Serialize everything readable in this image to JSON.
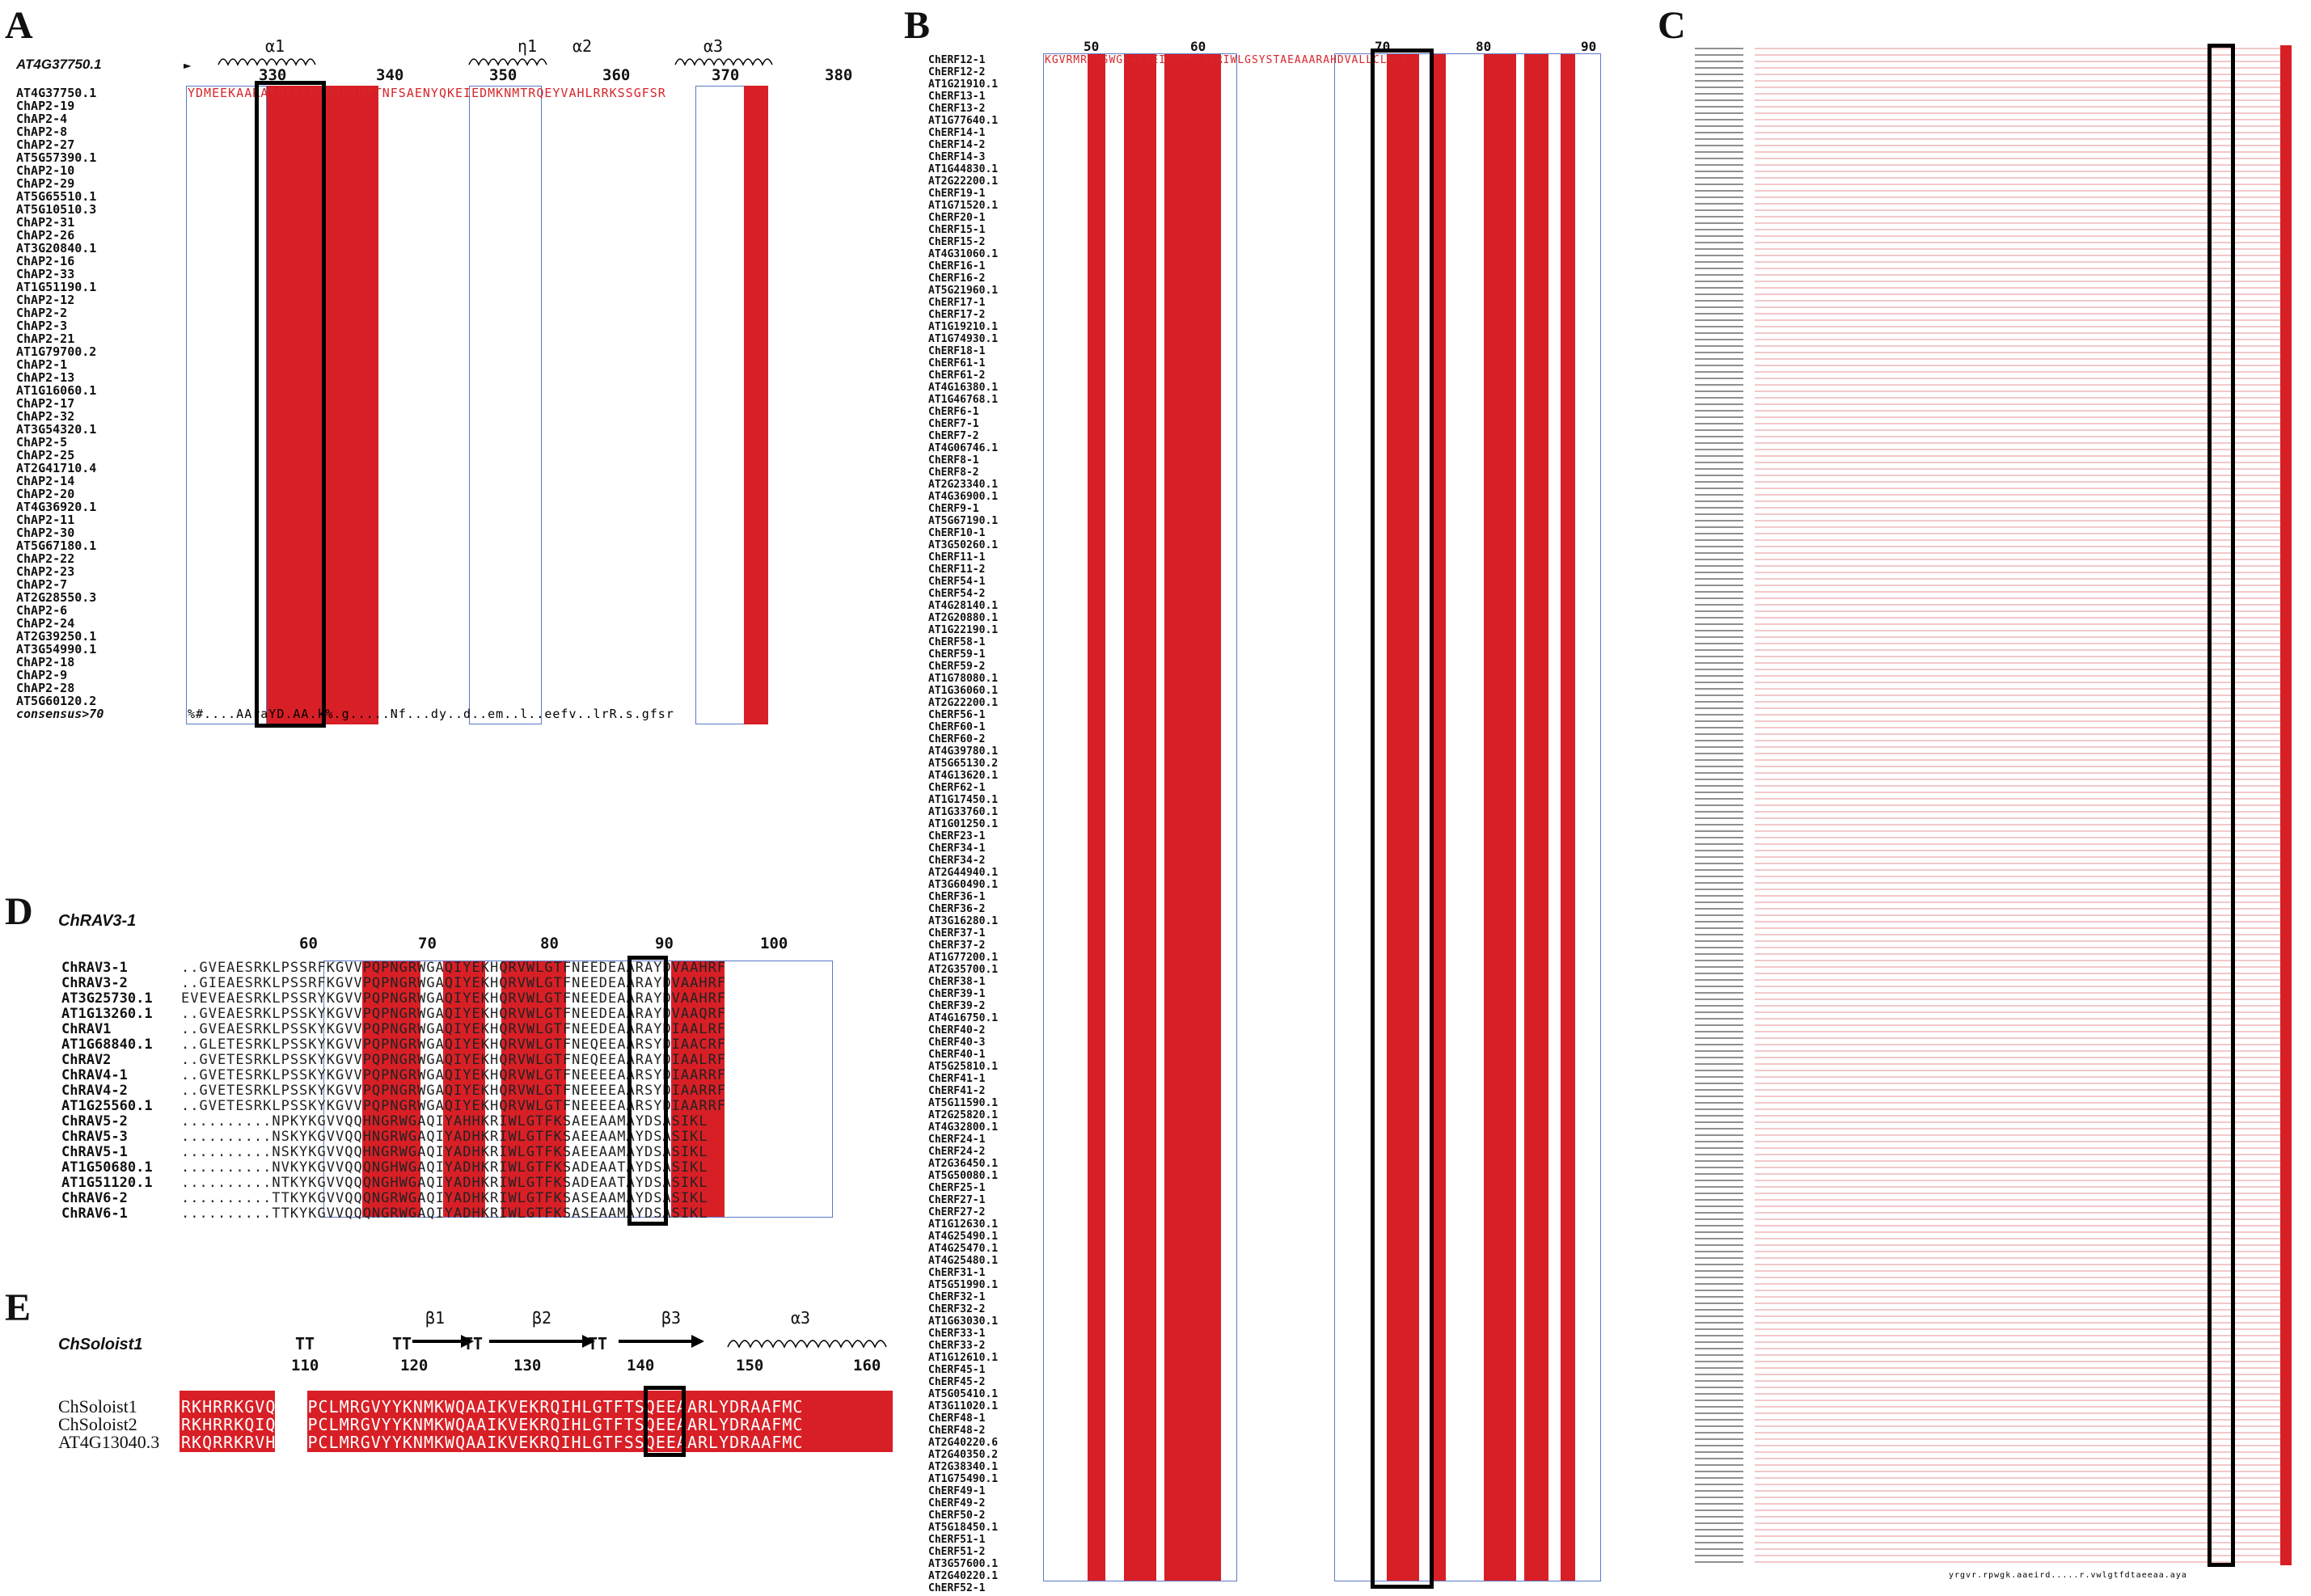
{
  "panels": {
    "A": {
      "letter": "A",
      "ref": "AT4G37750.1",
      "ruler_ticks": [
        "330",
        "340",
        "350",
        "360",
        "370",
        "380"
      ],
      "ss_labels": [
        "α1",
        "η1",
        "α2",
        "α3"
      ],
      "rows": [
        "AT4G37750.1",
        "ChAP2-19",
        "ChAP2-4",
        "ChAP2-8",
        "ChAP2-27",
        "AT5G57390.1",
        "ChAP2-10",
        "ChAP2-29",
        "AT5G65510.1",
        "AT5G10510.3",
        "ChAP2-31",
        "ChAP2-26",
        "AT3G20840.1",
        "ChAP2-16",
        "ChAP2-33",
        "AT1G51190.1",
        "ChAP2-12",
        "ChAP2-2",
        "ChAP2-3",
        "ChAP2-21",
        "AT1G79700.2",
        "ChAP2-1",
        "ChAP2-13",
        "AT1G16060.1",
        "ChAP2-17",
        "ChAP2-32",
        "AT3G54320.1",
        "ChAP2-5",
        "ChAP2-25",
        "AT2G41710.4",
        "ChAP2-14",
        "ChAP2-20",
        "AT4G36920.1",
        "ChAP2-11",
        "ChAP2-30",
        "AT5G67180.1",
        "ChAP2-22",
        "ChAP2-23",
        "ChAP2-7",
        "AT2G28550.3",
        "ChAP2-6",
        "ChAP2-24",
        "AT2G39250.1",
        "AT3G54990.1",
        "ChAP2-18",
        "ChAP2-9",
        "ChAP2-28",
        "AT5G60120.2",
        "consensus>70"
      ],
      "first_seq": "YDMEEKAARAYDAALKYWGPSHTTNFSAENYQKEIEDMKNMTRQEYVAHLRRKSSGFSR",
      "consensus": "%#....AAraYD.AA.k%.g.....Nf...dy..d..em..l..eefv..lrR.s.gfsr"
    },
    "B": {
      "letter": "B",
      "ruler_ticks": [
        "50",
        "60",
        "70",
        "80",
        "90"
      ],
      "rows": [
        "ChERF12-1",
        "ChERF12-2",
        "AT1G21910.1",
        "ChERF13-1",
        "ChERF13-2",
        "AT1G77640.1",
        "ChERF14-1",
        "ChERF14-2",
        "ChERF14-3",
        "AT1G44830.1",
        "AT2G22200.1",
        "ChERF19-1",
        "AT1G71520.1",
        "ChERF20-1",
        "ChERF15-1",
        "ChERF15-2",
        "AT4G31060.1",
        "ChERF16-1",
        "ChERF16-2",
        "AT5G21960.1",
        "ChERF17-1",
        "ChERF17-2",
        "AT1G19210.1",
        "AT1G74930.1",
        "ChERF18-1",
        "ChERF61-1",
        "ChERF61-2",
        "AT4G16380.1",
        "AT1G46768.1",
        "ChERF6-1",
        "ChERF7-1",
        "ChERF7-2",
        "AT4G06746.1",
        "ChERF8-1",
        "ChERF8-2",
        "AT2G23340.1",
        "AT4G36900.1",
        "ChERF9-1",
        "AT5G67190.1",
        "ChERF10-1",
        "AT3G50260.1",
        "ChERF11-1",
        "ChERF11-2",
        "ChERF54-1",
        "ChERF54-2",
        "AT4G28140.1",
        "AT2G20880.1",
        "AT1G22190.1",
        "ChERF58-1",
        "ChERF59-1",
        "ChERF59-2",
        "AT1G78080.1",
        "AT1G36060.1",
        "AT2G22200.1",
        "ChERF56-1",
        "ChERF60-1",
        "ChERF60-2",
        "AT4G39780.1",
        "AT5G65130.2",
        "AT4G13620.1",
        "ChERF62-1",
        "AT1G17450.1",
        "AT1G33760.1",
        "AT1G01250.1",
        "ChERF23-1",
        "ChERF34-1",
        "ChERF34-2",
        "AT2G44940.1",
        "AT3G60490.1",
        "ChERF36-1",
        "ChERF36-2",
        "AT3G16280.1",
        "ChERF37-1",
        "ChERF37-2",
        "AT1G77200.1",
        "AT2G35700.1",
        "ChERF38-1",
        "ChERF39-1",
        "ChERF39-2",
        "AT4G16750.1",
        "ChERF40-2",
        "ChERF40-3",
        "ChERF40-1",
        "AT5G25810.1",
        "ChERF41-1",
        "ChERF41-2",
        "AT5G11590.1",
        "AT2G25820.1",
        "AT4G32800.1",
        "ChERF24-1",
        "ChERF24-2",
        "AT2G36450.1",
        "AT5G50080.1",
        "ChERF25-1",
        "ChERF27-1",
        "ChERF27-2",
        "AT1G12630.1",
        "AT4G25490.1",
        "AT4G25470.1",
        "AT4G25480.1",
        "ChERF31-1",
        "AT5G51990.1",
        "ChERF32-1",
        "ChERF32-2",
        "AT1G63030.1",
        "ChERF33-1",
        "ChERF33-2",
        "AT1G12610.1",
        "ChERF45-1",
        "ChERF45-2",
        "AT5G05410.1",
        "AT3G11020.1",
        "ChERF48-1",
        "ChERF48-2",
        "AT2G40220.6",
        "AT2G40350.2",
        "AT2G38340.1",
        "AT1G75490.1",
        "ChERF49-1",
        "ChERF49-2",
        "ChERF50-2",
        "AT5G18450.1",
        "ChERF51-1",
        "ChERF51-2",
        "AT3G57600.1",
        "AT2G40220.1",
        "ChERF52-1"
      ],
      "first_seq": "KGVRMR..SWGSWVSEIRAPNKQTRIWLGSYSTAEAAARAHDVALLCLKGP."
    },
    "C": {
      "letter": "C",
      "consensus": "yrgvr.rpwgk.aaeird.....r.vwlgtfdtaeeaa.aya"
    },
    "D": {
      "letter": "D",
      "ref": "ChRAV3-1",
      "ruler_ticks": [
        "60",
        "70",
        "80",
        "90",
        "100"
      ],
      "rows": [
        {
          "name": "ChRAV3-1",
          "seq": "..GVEAESRKLPSSRFKGVVPQPNGRWGAQIYEKHQRVWLGTFNEEDEAARAYDVAAHRF"
        },
        {
          "name": "ChRAV3-2",
          "seq": "..GIEAESRKLPSSRFKGVVPQPNGRWGAQIYEKHQRVWLGTFNEEDEAARAYDVAAHRF"
        },
        {
          "name": "AT3G25730.1",
          "seq": "EVEVEAESRKLPSSRYKGVVPQPNGRWGAQIYEKHQRVWLGTFNEEDEAARAYDVAAHRF"
        },
        {
          "name": "AT1G13260.1",
          "seq": "..GVEAESRKLPSSKYKGVVPQPNGRWGAQIYEKHQRVWLGTFNEEDEAARAYDVAAQRF"
        },
        {
          "name": "ChRAV1",
          "seq": "..GVEAESRKLPSSKYKGVVPQPNGRWGAQIYEKHQRVWLGTFNEEDEAARAYDIAALRF"
        },
        {
          "name": "AT1G68840.1",
          "seq": "..GLETESRKLPSSKYKGVVPQPNGRWGAQIYEKHQRVWLGTFNEQEEAARSYDIAACRF"
        },
        {
          "name": "ChRAV2",
          "seq": "..GVETESRKLPSSKYKGVVPQPNGRWGAQIYEKHQRVWLGTFNEQEEAARAYDIAALRF"
        },
        {
          "name": "ChRAV4-1",
          "seq": "..GVETESRKLPSSKYKGVVPQPNGRWGAQIYEKHQRVWLGTFNEEEEAARSYDIAARRF"
        },
        {
          "name": "ChRAV4-2",
          "seq": "..GVETESRKLPSSKYKGVVPQPNGRWGAQIYEKHQRVWLGTFNEEEEAARSYDIAARRF"
        },
        {
          "name": "AT1G25560.1",
          "seq": "..GVETESRKLPSSKYKGVVPQPNGRWGAQIYEKHQRVWLGTFNEEEEAARSYDIAARRF"
        },
        {
          "name": "ChRAV5-2",
          "seq": "..........NPKYKGVVQQHNGRWGAQIYAHHKRIWLGTFKSAEEAAMAYDSASIKL"
        },
        {
          "name": "ChRAV5-3",
          "seq": "..........NSKYKGVVQQHNGRWGAQIYADHKRIWLGTFKSAEEAAMAYDSASIKL"
        },
        {
          "name": "ChRAV5-1",
          "seq": "..........NSKYKGVVQQHNGRWGAQIYADHKRIWLGTFKSAEEAAMAYDSASIKL"
        },
        {
          "name": "AT1G50680.1",
          "seq": "..........NVKYKGVVQQQNGHWGAQIYADHKRIWLGTFKSADEAATAYDSASIKL"
        },
        {
          "name": "AT1G51120.1",
          "seq": "..........NTKYKGVVQQQNGHWGAQIYADHKRIWLGTFKSADEAATAYDSASIKL"
        },
        {
          "name": "ChRAV6-2",
          "seq": "..........TTKYKGVVQQQNGRWGAQIYADHKRIWLGTFKSASEAAMAYDSASIKL"
        },
        {
          "name": "ChRAV6-1",
          "seq": "..........TTKYKGVVQQQNGRWGAQIYADHKRIWLGTFKSASEAAMAYDSASIKL"
        }
      ]
    },
    "E": {
      "letter": "E",
      "ref": "ChSoloist1",
      "ruler_ticks": [
        "110",
        "120",
        "130",
        "140",
        "150",
        "160"
      ],
      "ss_labels": [
        "β1",
        "β2",
        "β3",
        "α3",
        "TT",
        "TT",
        "TT",
        "TT"
      ],
      "rows": [
        {
          "name": "ChSoloist1",
          "seq": "RKHRRKGVQNQEPCLMRGVYYKNMKWQAAIKVEKRQIHLGTFTSQEEAARLYDRAAFMC"
        },
        {
          "name": "ChSoloist2",
          "seq": "RKHRRKQIQNQEPCLMRGVYYKNMKWQAAIKVEKRQIHLGTFTSQEEAARLYDRAAFMC"
        },
        {
          "name": "AT4G13040.3",
          "seq": "RKQRRKRVHNQEPCLMRGVYYKNMKWQAAIKVEKRQIHLGTFSSQEEAARLYDRAAFMC"
        }
      ]
    }
  },
  "colors": {
    "conserved": "#d81f26",
    "similar_frame": "#5d79c7",
    "box": "#000000"
  }
}
